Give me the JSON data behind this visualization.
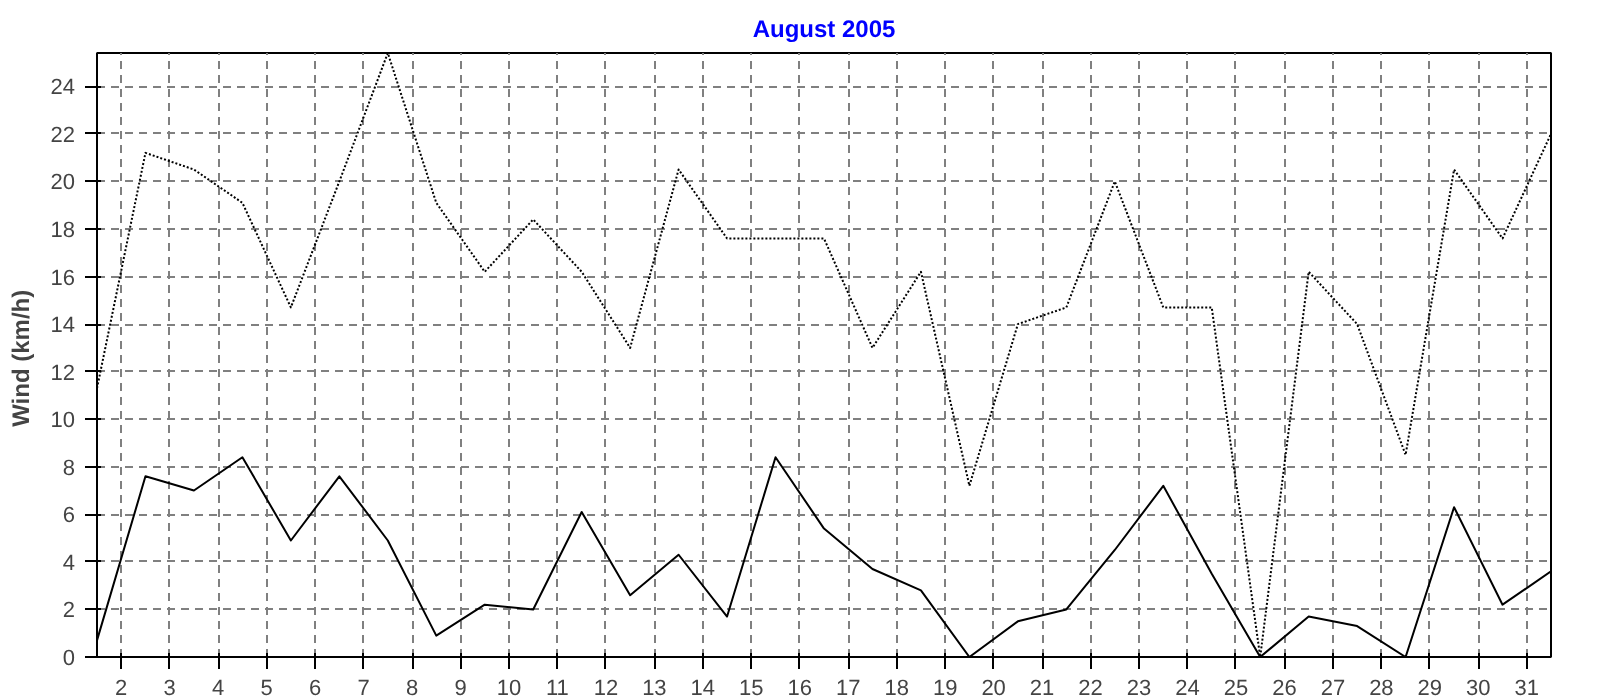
{
  "chart_data": {
    "type": "line",
    "title": "August 2005",
    "ylabel": "Wind  (km/h)",
    "x": [
      1.5,
      2.5,
      3.5,
      4.5,
      5.5,
      6.5,
      7.5,
      8.5,
      9.5,
      10.5,
      11.5,
      12.5,
      13.5,
      14.5,
      15.5,
      16.5,
      17.5,
      18.5,
      19.5,
      20.5,
      21.5,
      22.5,
      23.5,
      24.5,
      25.5,
      26.5,
      27.5,
      28.5,
      29.5,
      30.5,
      31.5
    ],
    "series": [
      {
        "color": "#000000",
        "line_style": "dotted",
        "values": [
          11.3,
          21.2,
          20.5,
          19.1,
          14.7,
          20.0,
          25.4,
          19.1,
          16.2,
          18.4,
          16.2,
          13.0,
          20.5,
          17.6,
          17.6,
          17.6,
          13.0,
          16.2,
          7.2,
          14.0,
          14.7,
          20.0,
          14.7,
          14.7,
          0,
          16.2,
          14.0,
          8.5,
          20.5,
          17.6,
          22.0
        ]
      },
      {
        "color": "#000000",
        "line_style": "solid",
        "values": [
          0.7,
          7.6,
          7.0,
          8.4,
          4.9,
          7.6,
          4.9,
          0.9,
          2.2,
          2.0,
          6.1,
          2.6,
          4.3,
          1.7,
          8.4,
          5.4,
          3.7,
          2.8,
          0,
          1.5,
          2.0,
          4.5,
          7.2,
          3.5,
          0,
          1.7,
          1.3,
          0,
          6.3,
          2.2,
          3.6
        ]
      }
    ],
    "xlim": [
      1.5,
      31.5
    ],
    "ylim": [
      0,
      25.4
    ],
    "xticks": [
      2,
      3,
      4,
      5,
      6,
      7,
      8,
      9,
      10,
      11,
      12,
      13,
      14,
      15,
      16,
      17,
      18,
      19,
      20,
      21,
      22,
      23,
      24,
      25,
      26,
      27,
      28,
      29,
      30,
      31
    ],
    "yticks": [
      0,
      2,
      4,
      6,
      8,
      10,
      12,
      14,
      16,
      18,
      20,
      22,
      24
    ],
    "grid": true,
    "marker": "none"
  }
}
